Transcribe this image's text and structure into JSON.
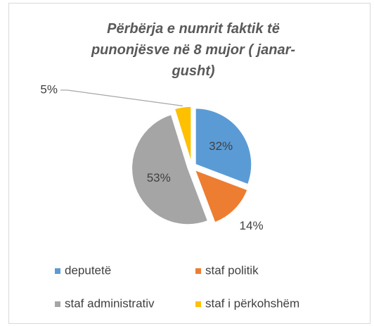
{
  "chart_data": {
    "type": "pie",
    "title": "Përbërja e numrit faktik të punonjësve në 8 mujor ( janar-gusht)",
    "categories": [
      "deputetë",
      "staf politik",
      "staf administrativ",
      "staf i përkohshëm"
    ],
    "values": [
      32,
      14,
      53,
      5
    ],
    "value_labels": [
      "32%",
      "14%",
      "53%",
      "5%"
    ],
    "colors": [
      "#5b9bd5",
      "#ed7d31",
      "#a5a5a5",
      "#ffc000"
    ],
    "legend": "bottom"
  }
}
